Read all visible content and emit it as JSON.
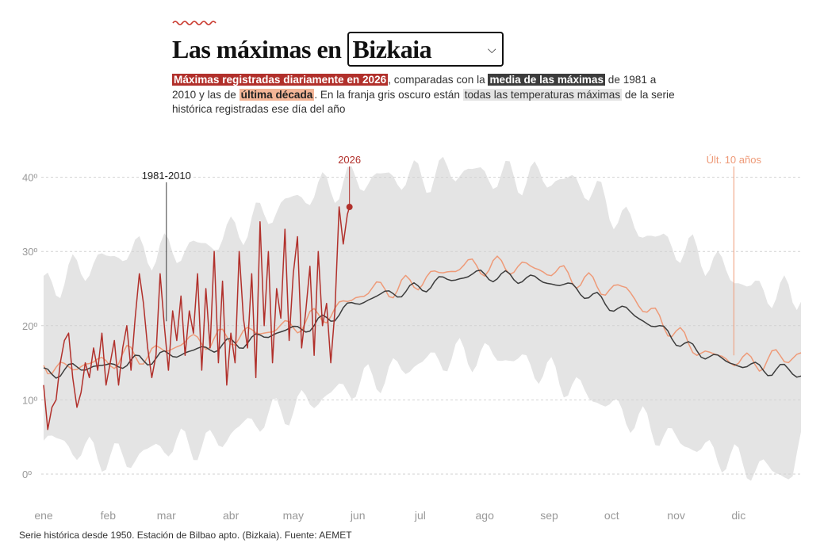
{
  "header": {
    "title_prefix": "Las máximas en",
    "region_selected": "Bizkaia"
  },
  "subtitle": {
    "part1": "Máximas registradas diariamente en 2026",
    "part2": ", comparadas con la ",
    "part3": "media de las máximas",
    "part4": " de 1981 a 2010 y las de ",
    "part5": "última década",
    "part6": ". En la franja gris oscuro están ",
    "part7": "todas las temperaturas máximas",
    "part8": " de la serie histórica registradas ese día del año"
  },
  "source": "Serie histórica desde 1950. Estación de Bilbao apto. (Bizkaia). Fuente: AEMET",
  "colors": {
    "current_year": "#b1302b",
    "mean_1981_2010": "#3c3c3c",
    "last_decade": "#ee9a78",
    "historic_band": "#e4e4e4",
    "axis_text": "#999999"
  },
  "chart_data": {
    "type": "line",
    "x_unit": "day_of_year",
    "xlim": [
      1,
      365
    ],
    "ylim": [
      -5,
      45
    ],
    "grid": true,
    "y_ticks": [
      0,
      10,
      20,
      30,
      40
    ],
    "y_tick_labels": [
      "0º",
      "10º",
      "20º",
      "30º",
      "40º"
    ],
    "month_labels": [
      "ene",
      "feb",
      "mar",
      "abr",
      "may",
      "jun",
      "jul",
      "ago",
      "sep",
      "oct",
      "nov",
      "dic"
    ],
    "month_days": [
      1,
      32,
      60,
      91,
      121,
      152,
      182,
      213,
      244,
      274,
      305,
      335
    ],
    "annotations": [
      {
        "label": "1981-2010",
        "day": 60,
        "value": 27
      },
      {
        "label": "2026",
        "day": 148,
        "value": 36
      },
      {
        "label": "Últ. 10 años",
        "day": 335,
        "value": 16
      }
    ],
    "series": [
      {
        "name": "2026",
        "x": [
          1,
          3,
          5,
          7,
          9,
          11,
          13,
          15,
          17,
          19,
          21,
          23,
          25,
          27,
          29,
          31,
          33,
          35,
          37,
          39,
          41,
          43,
          45,
          47,
          49,
          51,
          53,
          55,
          57,
          59,
          61,
          63,
          65,
          67,
          69,
          71,
          73,
          75,
          77,
          79,
          81,
          83,
          85,
          87,
          89,
          91,
          93,
          95,
          97,
          99,
          101,
          103,
          105,
          107,
          109,
          111,
          113,
          115,
          117,
          119,
          121,
          123,
          125,
          127,
          129,
          131,
          133,
          135,
          137,
          139,
          141,
          143,
          145,
          147,
          148
        ],
        "y": [
          12,
          6,
          9,
          10,
          15,
          18,
          19,
          13,
          9,
          11,
          15,
          13,
          17,
          14,
          19,
          12,
          15,
          18,
          12,
          17,
          20,
          14,
          21,
          27,
          23,
          17,
          13,
          16,
          27,
          20,
          14,
          22,
          18,
          24,
          16,
          22,
          19,
          27,
          14,
          25,
          17,
          30,
          15,
          26,
          12,
          19,
          15,
          30,
          21,
          17,
          27,
          13,
          34,
          20,
          30,
          15,
          25,
          21,
          33,
          18,
          27,
          32,
          17,
          22,
          28,
          16,
          30,
          20,
          23,
          15,
          22,
          36,
          31,
          35,
          36
        ]
      },
      {
        "name": "1981-2010",
        "x": [
          1,
          11,
          21,
          31,
          41,
          51,
          61,
          71,
          81,
          91,
          101,
          111,
          121,
          131,
          141,
          151,
          161,
          171,
          181,
          191,
          201,
          211,
          221,
          231,
          241,
          251,
          261,
          271,
          281,
          291,
          301,
          311,
          321,
          331,
          341,
          351,
          361,
          365
        ],
        "y": [
          13.5,
          14,
          14.5,
          14.5,
          15,
          15.5,
          16,
          16.5,
          17,
          17.5,
          18,
          19,
          19.5,
          20,
          21.5,
          23,
          24,
          24.5,
          25,
          26,
          26.5,
          27,
          26.5,
          26.5,
          26,
          25.5,
          24.5,
          23,
          22,
          20.5,
          19,
          17,
          16,
          15,
          14.5,
          14,
          14,
          13.5
        ]
      },
      {
        "name": "Últ. 10 años",
        "x": [
          1,
          11,
          21,
          31,
          41,
          51,
          61,
          71,
          81,
          91,
          101,
          111,
          121,
          131,
          141,
          151,
          161,
          171,
          181,
          191,
          201,
          211,
          221,
          231,
          241,
          251,
          261,
          271,
          281,
          291,
          301,
          311,
          321,
          331,
          341,
          351,
          361,
          365
        ],
        "y": [
          15,
          14,
          15,
          15,
          16,
          16,
          17,
          18,
          18,
          18.5,
          19,
          19.5,
          20,
          21,
          22,
          24,
          25,
          25,
          26,
          27,
          28,
          28,
          28,
          28,
          27.5,
          27,
          26,
          25,
          25,
          22,
          20,
          17.5,
          16,
          15.5,
          15,
          15.5,
          16,
          16
        ]
      }
    ],
    "historic_range": {
      "x": [
        1,
        21,
        41,
        61,
        81,
        101,
        121,
        141,
        161,
        181,
        201,
        221,
        241,
        261,
        281,
        301,
        321,
        341,
        361,
        365
      ],
      "max": [
        25,
        28,
        30,
        30,
        31,
        34,
        37,
        39,
        40,
        40,
        41,
        40,
        40,
        39,
        34,
        31,
        29,
        25,
        24,
        25
      ],
      "min": [
        5,
        3,
        2,
        4,
        4,
        7,
        9,
        11,
        13,
        15,
        16,
        16,
        14,
        11,
        8,
        5,
        3,
        1,
        0,
        4
      ]
    }
  }
}
